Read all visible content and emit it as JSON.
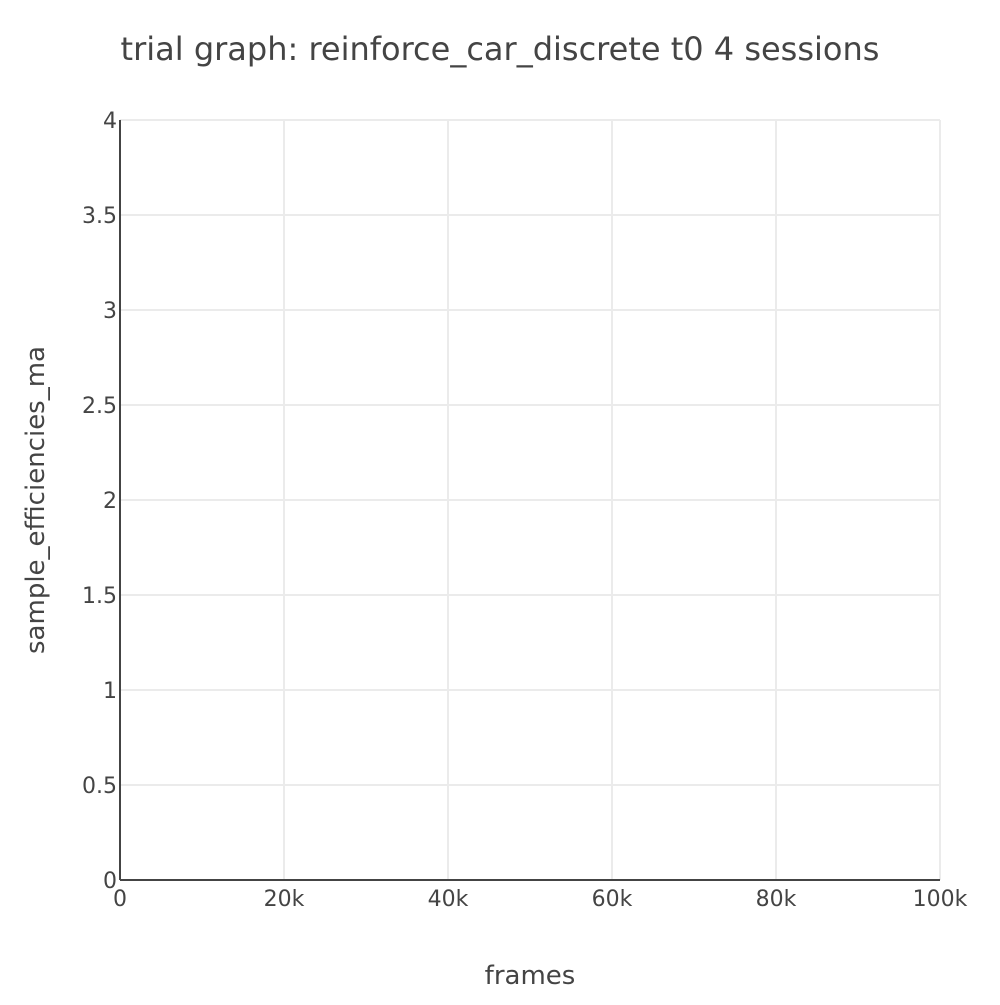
{
  "chart_data": {
    "type": "line",
    "title": "trial graph: reinforce_car_discrete t0 4 sessions",
    "xlabel": "frames",
    "ylabel": "sample_efficiencies_ma",
    "xlim": [
      0,
      100000
    ],
    "ylim": [
      0,
      4
    ],
    "x_ticks": [
      0,
      20000,
      40000,
      60000,
      80000,
      100000
    ],
    "x_tick_labels": [
      "0",
      "20k",
      "40k",
      "60k",
      "80k",
      "100k"
    ],
    "y_ticks": [
      0,
      0.5,
      1,
      1.5,
      2,
      2.5,
      3,
      3.5,
      4
    ],
    "y_tick_labels": [
      "0",
      "0.5",
      "1",
      "1.5",
      "2",
      "2.5",
      "3",
      "3.5",
      "4"
    ],
    "grid": true,
    "series": []
  }
}
